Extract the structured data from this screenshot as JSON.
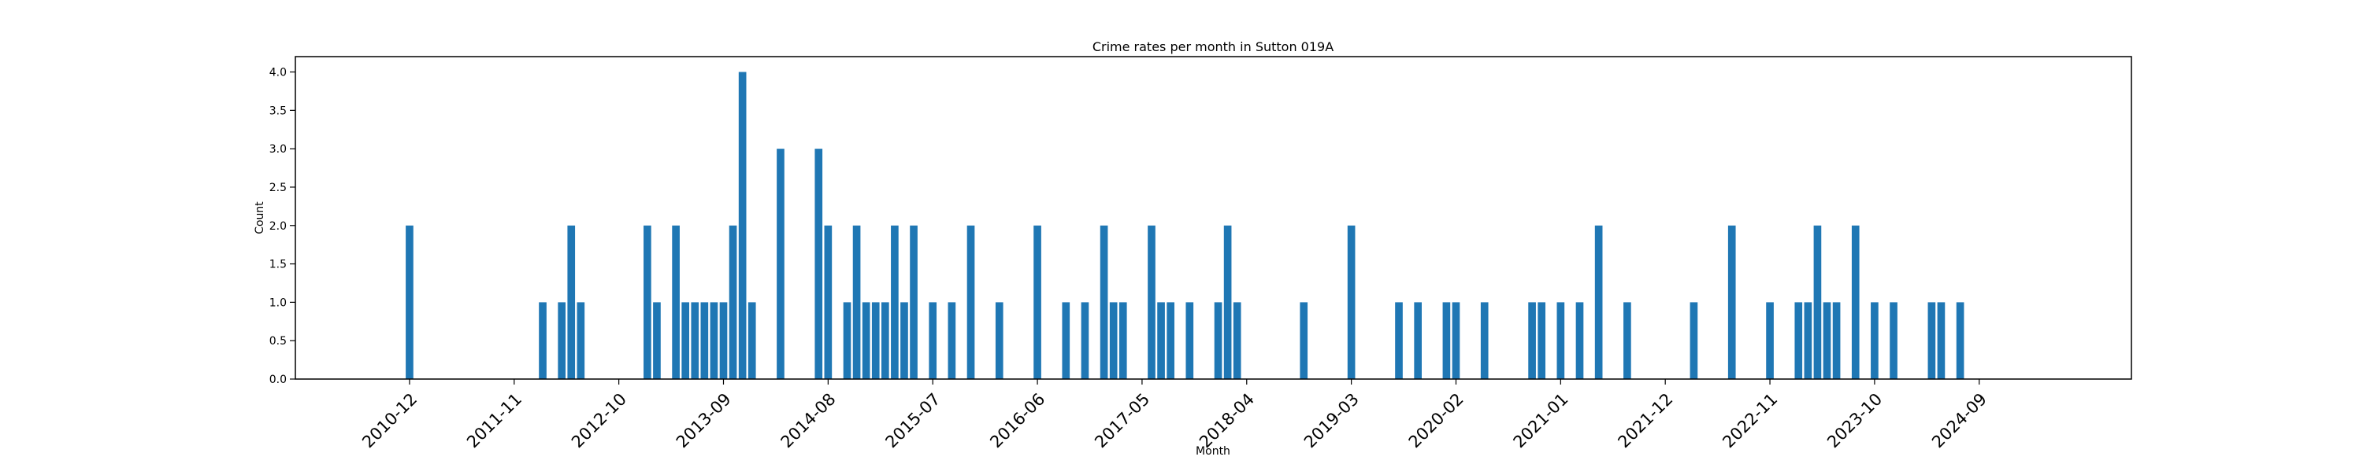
{
  "chart_data": {
    "type": "bar",
    "title": "Crime rates per month in Sutton 019A",
    "xlabel": "Month",
    "ylabel": "Count",
    "ylim": [
      0,
      4.2
    ],
    "xlim": [
      "2009-12",
      "2026-01"
    ],
    "yticks": [
      0.0,
      0.5,
      1.0,
      1.5,
      2.0,
      2.5,
      3.0,
      3.5,
      4.0
    ],
    "ytick_labels": [
      "0.0",
      "0.5",
      "1.0",
      "1.5",
      "2.0",
      "2.5",
      "3.0",
      "3.5",
      "4.0"
    ],
    "xticks": [
      "2010-12",
      "2011-11",
      "2012-10",
      "2013-09",
      "2014-08",
      "2015-07",
      "2016-06",
      "2017-05",
      "2018-04",
      "2019-03",
      "2020-02",
      "2021-01",
      "2021-12",
      "2022-11",
      "2023-10",
      "2024-09"
    ],
    "grid": false,
    "bar_color": "#1f77b4",
    "x": [
      "2010-12",
      "2012-02",
      "2012-04",
      "2012-05",
      "2012-06",
      "2013-01",
      "2013-02",
      "2013-04",
      "2013-05",
      "2013-06",
      "2013-07",
      "2013-08",
      "2013-09",
      "2013-10",
      "2013-11",
      "2013-12",
      "2014-03",
      "2014-07",
      "2014-08",
      "2014-10",
      "2014-11",
      "2014-12",
      "2015-01",
      "2015-02",
      "2015-03",
      "2015-04",
      "2015-05",
      "2015-07",
      "2015-09",
      "2015-11",
      "2016-02",
      "2016-06",
      "2016-09",
      "2016-11",
      "2017-01",
      "2017-02",
      "2017-03",
      "2017-06",
      "2017-07",
      "2017-08",
      "2017-10",
      "2018-01",
      "2018-02",
      "2018-03",
      "2018-10",
      "2019-03",
      "2019-08",
      "2019-10",
      "2020-01",
      "2020-02",
      "2020-05",
      "2020-10",
      "2020-11",
      "2021-01",
      "2021-03",
      "2021-05",
      "2021-08",
      "2022-03",
      "2022-07",
      "2022-11",
      "2023-02",
      "2023-03",
      "2023-04",
      "2023-05",
      "2023-06",
      "2023-08",
      "2023-10",
      "2023-12",
      "2024-04",
      "2024-05",
      "2024-07"
    ],
    "values": [
      2,
      1,
      1,
      2,
      1,
      2,
      1,
      2,
      1,
      1,
      1,
      1,
      1,
      2,
      4,
      1,
      3,
      3,
      2,
      1,
      2,
      1,
      1,
      1,
      2,
      1,
      2,
      1,
      1,
      2,
      1,
      2,
      1,
      1,
      2,
      1,
      1,
      2,
      1,
      1,
      1,
      1,
      2,
      1,
      1,
      2,
      1,
      1,
      1,
      1,
      1,
      1,
      1,
      1,
      1,
      2,
      1,
      1,
      2,
      1,
      1,
      1,
      2,
      1,
      1,
      2,
      1,
      1,
      1,
      1,
      1
    ]
  }
}
